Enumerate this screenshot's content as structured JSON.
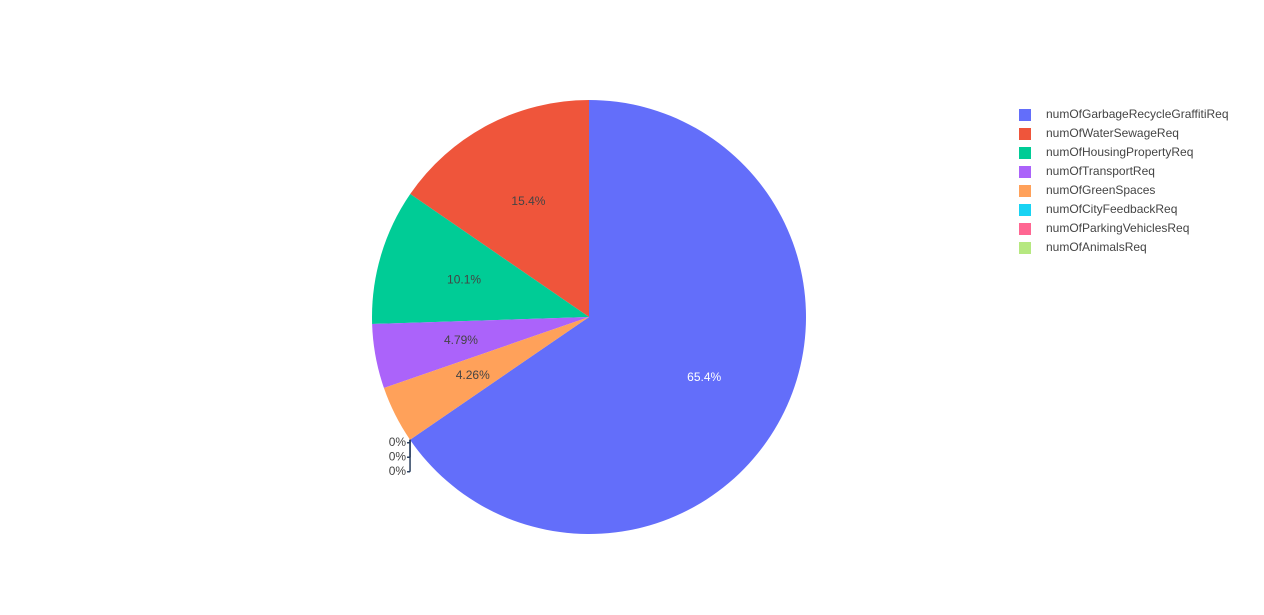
{
  "chart_data": {
    "type": "pie",
    "categories": [
      "numOfGarbageRecycleGraffitiReq",
      "numOfWaterSewageReq",
      "numOfHousingPropertyReq",
      "numOfTransportReq",
      "numOfGreenSpaces",
      "numOfCityFeedbackReq",
      "numOfParkingVehiclesReq",
      "numOfAnimalsReq"
    ],
    "values": [
      65.4,
      15.4,
      10.1,
      4.79,
      4.26,
      0,
      0,
      0
    ],
    "value_labels": [
      "65.4%",
      "15.4%",
      "10.1%",
      "4.79%",
      "4.26%",
      "0%",
      "0%",
      "0%"
    ],
    "colors": [
      "#636efa",
      "#ef553b",
      "#00cc96",
      "#ab63fa",
      "#ffa15a",
      "#19d3f3",
      "#ff6692",
      "#b6e880"
    ],
    "legend": "top-right"
  }
}
